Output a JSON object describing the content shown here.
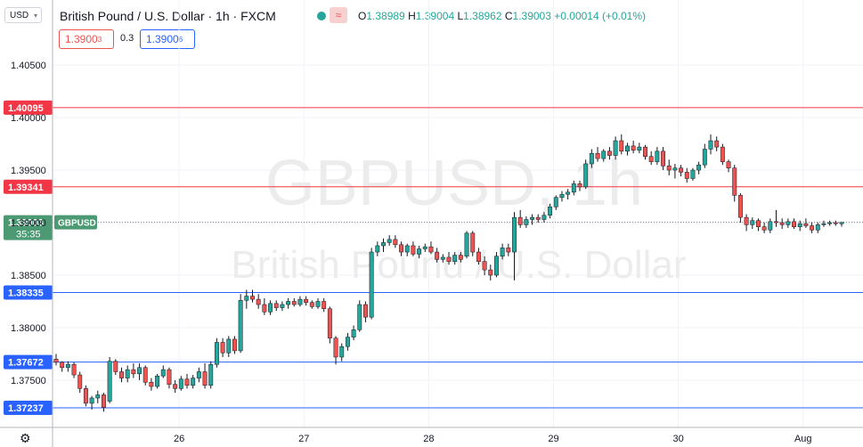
{
  "header": {
    "currency": "USD",
    "title": "British Pound / U.S. Dollar · 1h · FXCM",
    "ohlc": {
      "o": "1.38989",
      "h": "1.39004",
      "l": "1.38962",
      "c": "1.39003",
      "chg": "+0.00014 (+0.01%)"
    },
    "sell_price": "1.3900",
    "sell_sup": "3",
    "spread": "0.3",
    "buy_price": "1.3900",
    "buy_sup": "6"
  },
  "colors": {
    "up": "#26a69a",
    "down": "#ef5350",
    "resistance": "#f23645",
    "support": "#2962ff",
    "current": "#4c9a74"
  },
  "icons": {
    "settings": "gear-icon",
    "indicator": "wave-icon",
    "status": "dot-icon"
  },
  "watermark": {
    "symbol": "GBPUSD, 1h",
    "name": "British Pound / U.S. Dollar"
  },
  "chart_data": {
    "type": "candlestick",
    "y_ticks": [
      1.405,
      1.4,
      1.395,
      1.39,
      1.385,
      1.38,
      1.375
    ],
    "y_tick_labels": [
      "1.40500",
      "1.40000",
      "1.39500",
      "1.39000",
      "1.38500",
      "1.38000",
      "1.37500"
    ],
    "ylim": [
      1.3705,
      1.4112
    ],
    "x_ticks": [
      {
        "label": "26",
        "x": 1.0
      },
      {
        "label": "27",
        "x": 2.0
      },
      {
        "label": "28",
        "x": 3.0
      },
      {
        "label": "29",
        "x": 4.0
      },
      {
        "label": "30",
        "x": 5.0
      },
      {
        "label": "Aug",
        "x": 6.0
      }
    ],
    "xlim": [
      0,
      6.48
    ],
    "levels": [
      {
        "value": 1.40095,
        "label": "1.40095",
        "kind": "resistance"
      },
      {
        "value": 1.39341,
        "label": "1.39341",
        "kind": "resistance"
      },
      {
        "value": 1.38335,
        "label": "1.38335",
        "kind": "support"
      },
      {
        "value": 1.37672,
        "label": "1.37672",
        "kind": "support"
      },
      {
        "value": 1.37237,
        "label": "1.37237",
        "kind": "support"
      }
    ],
    "current": {
      "value": 1.39003,
      "label": "1.39003",
      "countdown": "35:35",
      "symbol": "GBPUSD"
    },
    "candles": [
      [
        1.377,
        1.3775,
        1.3764,
        1.3767
      ],
      [
        1.3767,
        1.3768,
        1.3758,
        1.3762
      ],
      [
        1.3762,
        1.3768,
        1.3758,
        1.3765
      ],
      [
        1.3765,
        1.3767,
        1.3752,
        1.3755
      ],
      [
        1.3755,
        1.3758,
        1.3738,
        1.3742
      ],
      [
        1.3742,
        1.3745,
        1.3725,
        1.3728
      ],
      [
        1.3728,
        1.3735,
        1.3722,
        1.3733
      ],
      [
        1.3733,
        1.374,
        1.3728,
        1.3736
      ],
      [
        1.3736,
        1.3738,
        1.372,
        1.3724
      ],
      [
        1.373,
        1.3772,
        1.3728,
        1.3768
      ],
      [
        1.3768,
        1.377,
        1.3755,
        1.3758
      ],
      [
        1.3758,
        1.3762,
        1.3748,
        1.3752
      ],
      [
        1.3752,
        1.3764,
        1.3748,
        1.376
      ],
      [
        1.376,
        1.3766,
        1.3752,
        1.3756
      ],
      [
        1.3756,
        1.3766,
        1.375,
        1.3762
      ],
      [
        1.3762,
        1.3764,
        1.3745,
        1.3748
      ],
      [
        1.3748,
        1.3752,
        1.374,
        1.3744
      ],
      [
        1.3744,
        1.3756,
        1.3742,
        1.3754
      ],
      [
        1.3754,
        1.3764,
        1.3752,
        1.376
      ],
      [
        1.376,
        1.3762,
        1.3742,
        1.3746
      ],
      [
        1.3746,
        1.375,
        1.3738,
        1.3742
      ],
      [
        1.3742,
        1.3754,
        1.374,
        1.3751
      ],
      [
        1.3751,
        1.3756,
        1.3742,
        1.3745
      ],
      [
        1.3745,
        1.3755,
        1.3742,
        1.3752
      ],
      [
        1.3752,
        1.3762,
        1.3748,
        1.3758
      ],
      [
        1.3758,
        1.3766,
        1.3742,
        1.3745
      ],
      [
        1.3745,
        1.3768,
        1.3742,
        1.3765
      ],
      [
        1.3765,
        1.379,
        1.3762,
        1.3786
      ],
      [
        1.3786,
        1.379,
        1.3772,
        1.3776
      ],
      [
        1.3776,
        1.3792,
        1.3772,
        1.3789
      ],
      [
        1.3789,
        1.3792,
        1.3775,
        1.3778
      ],
      [
        1.3778,
        1.3832,
        1.3776,
        1.3826
      ],
      [
        1.3826,
        1.3836,
        1.3818,
        1.383
      ],
      [
        1.383,
        1.3836,
        1.3824,
        1.3827
      ],
      [
        1.3827,
        1.3832,
        1.3818,
        1.3822
      ],
      [
        1.3822,
        1.3828,
        1.3812,
        1.3815
      ],
      [
        1.3815,
        1.3826,
        1.3812,
        1.3823
      ],
      [
        1.3823,
        1.3826,
        1.3816,
        1.3819
      ],
      [
        1.3819,
        1.3825,
        1.3816,
        1.3822
      ],
      [
        1.3822,
        1.3828,
        1.3818,
        1.3825
      ],
      [
        1.3825,
        1.3828,
        1.382,
        1.3822
      ],
      [
        1.3822,
        1.383,
        1.382,
        1.3827
      ],
      [
        1.3827,
        1.383,
        1.3821,
        1.3824
      ],
      [
        1.3824,
        1.3826,
        1.3818,
        1.382
      ],
      [
        1.382,
        1.3828,
        1.3818,
        1.3825
      ],
      [
        1.3825,
        1.3828,
        1.3815,
        1.3818
      ],
      [
        1.3818,
        1.382,
        1.3785,
        1.379
      ],
      [
        1.379,
        1.3792,
        1.3765,
        1.3772
      ],
      [
        1.3772,
        1.3785,
        1.3768,
        1.3782
      ],
      [
        1.3782,
        1.3795,
        1.3778,
        1.3791
      ],
      [
        1.3791,
        1.3802,
        1.3788,
        1.3798
      ],
      [
        1.3798,
        1.3826,
        1.3796,
        1.3822
      ],
      [
        1.3822,
        1.3825,
        1.3805,
        1.381
      ],
      [
        1.381,
        1.3876,
        1.3808,
        1.3872
      ],
      [
        1.3872,
        1.3882,
        1.3868,
        1.3878
      ],
      [
        1.3878,
        1.3885,
        1.3872,
        1.3881
      ],
      [
        1.3881,
        1.3888,
        1.3878,
        1.3884
      ],
      [
        1.3884,
        1.3888,
        1.3876,
        1.3879
      ],
      [
        1.3879,
        1.3882,
        1.3868,
        1.3872
      ],
      [
        1.3872,
        1.388,
        1.3868,
        1.3878
      ],
      [
        1.3878,
        1.3882,
        1.3868,
        1.387
      ],
      [
        1.387,
        1.3878,
        1.3866,
        1.3875
      ],
      [
        1.3875,
        1.388,
        1.3872,
        1.3877
      ],
      [
        1.3877,
        1.3882,
        1.387,
        1.3872
      ],
      [
        1.3872,
        1.3876,
        1.3862,
        1.3865
      ],
      [
        1.3865,
        1.387,
        1.3862,
        1.3867
      ],
      [
        1.3867,
        1.3872,
        1.386,
        1.3863
      ],
      [
        1.3863,
        1.3872,
        1.386,
        1.3869
      ],
      [
        1.3869,
        1.3872,
        1.3862,
        1.3865
      ],
      [
        1.3868,
        1.3892,
        1.3866,
        1.389
      ],
      [
        1.389,
        1.3892,
        1.3868,
        1.3872
      ],
      [
        1.3872,
        1.3876,
        1.386,
        1.3863
      ],
      [
        1.3863,
        1.3868,
        1.385,
        1.3855
      ],
      [
        1.3855,
        1.386,
        1.3845,
        1.385
      ],
      [
        1.385,
        1.3872,
        1.3848,
        1.3868
      ],
      [
        1.3868,
        1.388,
        1.3865,
        1.3876
      ],
      [
        1.3876,
        1.388,
        1.3868,
        1.3872
      ],
      [
        1.3872,
        1.391,
        1.3845,
        1.3905
      ],
      [
        1.3905,
        1.3912,
        1.3895,
        1.3898
      ],
      [
        1.3898,
        1.3906,
        1.3895,
        1.3903
      ],
      [
        1.3903,
        1.3908,
        1.3898,
        1.3905
      ],
      [
        1.3905,
        1.3908,
        1.39,
        1.3903
      ],
      [
        1.3903,
        1.391,
        1.39,
        1.3907
      ],
      [
        1.3907,
        1.3918,
        1.3904,
        1.3915
      ],
      [
        1.3915,
        1.3926,
        1.3912,
        1.3924
      ],
      [
        1.3924,
        1.393,
        1.392,
        1.3927
      ],
      [
        1.3927,
        1.3932,
        1.3922,
        1.3929
      ],
      [
        1.3929,
        1.394,
        1.3926,
        1.3937
      ],
      [
        1.3937,
        1.394,
        1.393,
        1.3934
      ],
      [
        1.3934,
        1.396,
        1.3932,
        1.3956
      ],
      [
        1.3956,
        1.397,
        1.3952,
        1.3966
      ],
      [
        1.3966,
        1.3972,
        1.3958,
        1.3961
      ],
      [
        1.3961,
        1.397,
        1.3958,
        1.3968
      ],
      [
        1.3968,
        1.3972,
        1.396,
        1.3964
      ],
      [
        1.3964,
        1.3982,
        1.396,
        1.3978
      ],
      [
        1.3978,
        1.3984,
        1.3965,
        1.3968
      ],
      [
        1.3968,
        1.3976,
        1.3964,
        1.3973
      ],
      [
        1.3973,
        1.3978,
        1.3966,
        1.3969
      ],
      [
        1.3969,
        1.3976,
        1.3966,
        1.3972
      ],
      [
        1.3972,
        1.3974,
        1.396,
        1.3963
      ],
      [
        1.3963,
        1.3968,
        1.3955,
        1.3958
      ],
      [
        1.3958,
        1.3972,
        1.3955,
        1.3968
      ],
      [
        1.3968,
        1.3972,
        1.395,
        1.3954
      ],
      [
        1.3954,
        1.396,
        1.3945,
        1.395
      ],
      [
        1.395,
        1.3956,
        1.3942,
        1.3952
      ],
      [
        1.3952,
        1.3955,
        1.3944,
        1.3948
      ],
      [
        1.3948,
        1.3952,
        1.3938,
        1.3942
      ],
      [
        1.3942,
        1.3952,
        1.394,
        1.395
      ],
      [
        1.395,
        1.3958,
        1.3946,
        1.3955
      ],
      [
        1.3955,
        1.3975,
        1.3952,
        1.397
      ],
      [
        1.397,
        1.3984,
        1.3965,
        1.3978
      ],
      [
        1.3978,
        1.3982,
        1.3968,
        1.3972
      ],
      [
        1.3972,
        1.3975,
        1.3955,
        1.3958
      ],
      [
        1.3958,
        1.396,
        1.3948,
        1.3952
      ],
      [
        1.3952,
        1.3955,
        1.392,
        1.3926
      ],
      [
        1.3926,
        1.3928,
        1.39,
        1.3905
      ],
      [
        1.3905,
        1.3908,
        1.3892,
        1.3898
      ],
      [
        1.3898,
        1.3905,
        1.3894,
        1.3902
      ],
      [
        1.3902,
        1.3904,
        1.3892,
        1.3896
      ],
      [
        1.3896,
        1.39,
        1.389,
        1.3893
      ],
      [
        1.3893,
        1.3904,
        1.389,
        1.3901
      ],
      [
        1.3901,
        1.3912,
        1.3896,
        1.39
      ],
      [
        1.39,
        1.3904,
        1.3894,
        1.3898
      ],
      [
        1.3898,
        1.3904,
        1.3895,
        1.3901
      ],
      [
        1.3901,
        1.3904,
        1.3894,
        1.3896
      ],
      [
        1.3896,
        1.3902,
        1.3892,
        1.3899
      ],
      [
        1.3899,
        1.3904,
        1.3895,
        1.3897
      ],
      [
        1.3897,
        1.39,
        1.389,
        1.3893
      ],
      [
        1.3893,
        1.39,
        1.389,
        1.3898
      ],
      [
        1.3898,
        1.3902,
        1.3896,
        1.3899
      ],
      [
        1.3899,
        1.3902,
        1.3897,
        1.39
      ],
      [
        1.39,
        1.3902,
        1.3897,
        1.3899
      ],
      [
        1.38989,
        1.39004,
        1.38962,
        1.39003
      ]
    ]
  }
}
